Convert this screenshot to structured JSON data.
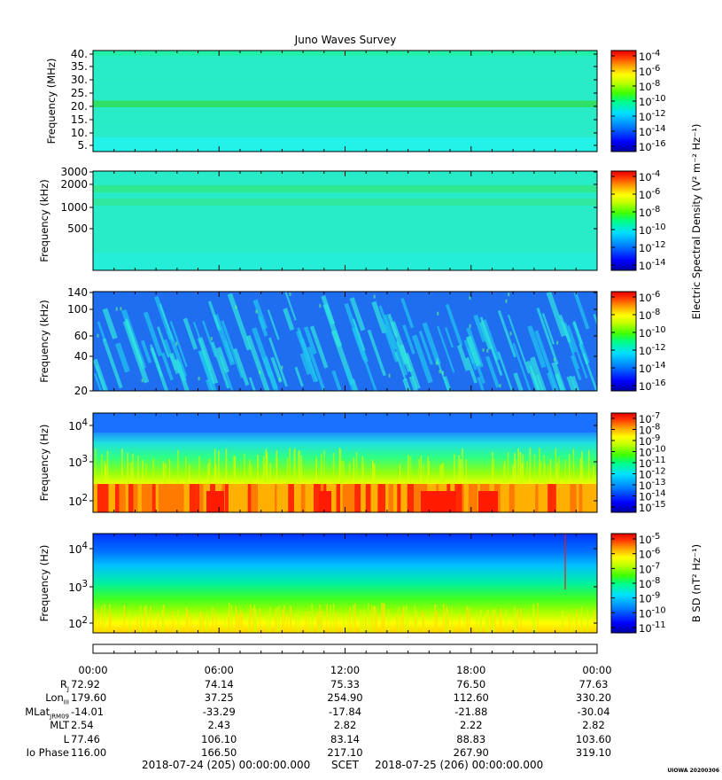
{
  "title": "Juno Waves Survey",
  "colors": {
    "background_hf": "#24ecd0",
    "background_low": "#1f6ef0",
    "colormap": [
      "#0000a0",
      "#0000ff",
      "#0080ff",
      "#00e0ff",
      "#00ff80",
      "#40ff00",
      "#c0ff00",
      "#ffff00",
      "#ffa000",
      "#ff3000",
      "#e00000"
    ]
  },
  "chart_data": [
    {
      "type": "heatmap",
      "ylabel": "Frequency (MHz)",
      "yticks": [
        "40.",
        "35.",
        "30.",
        "25.",
        "20.",
        "15.",
        "10.",
        "5."
      ],
      "colorbar_ticks": [
        {
          "base": "10",
          "exp": "-4"
        },
        {
          "base": "10",
          "exp": "-6"
        },
        {
          "base": "10",
          "exp": "-8"
        },
        {
          "base": "10",
          "exp": "-10"
        },
        {
          "base": "10",
          "exp": "-12"
        },
        {
          "base": "10",
          "exp": "-14"
        },
        {
          "base": "10",
          "exp": "-16"
        }
      ]
    },
    {
      "type": "heatmap",
      "ylabel": "Frequency (kHz)",
      "yticks": [
        "3000",
        "2000",
        "1000",
        "500"
      ],
      "colorbar_ticks": [
        {
          "base": "10",
          "exp": "-4"
        },
        {
          "base": "10",
          "exp": "-6"
        },
        {
          "base": "10",
          "exp": "-8"
        },
        {
          "base": "10",
          "exp": "-10"
        },
        {
          "base": "10",
          "exp": "-12"
        },
        {
          "base": "10",
          "exp": "-14"
        }
      ],
      "colorbar_label": "Electric Spectral Density (V² m⁻² Hz⁻¹)"
    },
    {
      "type": "heatmap",
      "ylabel": "Frequency (kHz)",
      "yticks": [
        "140",
        "100",
        "60",
        "40",
        "20"
      ],
      "colorbar_ticks": [
        {
          "base": "10",
          "exp": "-6"
        },
        {
          "base": "10",
          "exp": "-8"
        },
        {
          "base": "10",
          "exp": "-10"
        },
        {
          "base": "10",
          "exp": "-12"
        },
        {
          "base": "10",
          "exp": "-14"
        },
        {
          "base": "10",
          "exp": "-16"
        }
      ]
    },
    {
      "type": "heatmap",
      "ylabel": "Frequency (Hz)",
      "yticks": [
        {
          "base": "10",
          "exp": "4"
        },
        {
          "base": "10",
          "exp": "3"
        },
        {
          "base": "10",
          "exp": "2"
        }
      ],
      "colorbar_ticks": [
        {
          "base": "10",
          "exp": "-7"
        },
        {
          "base": "10",
          "exp": "-8"
        },
        {
          "base": "10",
          "exp": "-9"
        },
        {
          "base": "10",
          "exp": "-10"
        },
        {
          "base": "10",
          "exp": "-11"
        },
        {
          "base": "10",
          "exp": "-12"
        },
        {
          "base": "10",
          "exp": "-13"
        },
        {
          "base": "10",
          "exp": "-14"
        },
        {
          "base": "10",
          "exp": "-15"
        }
      ]
    },
    {
      "type": "heatmap",
      "ylabel": "Frequency (Hz)",
      "yticks": [
        {
          "base": "10",
          "exp": "4"
        },
        {
          "base": "10",
          "exp": "3"
        },
        {
          "base": "10",
          "exp": "2"
        }
      ],
      "colorbar_ticks": [
        {
          "base": "10",
          "exp": "-5"
        },
        {
          "base": "10",
          "exp": "-6"
        },
        {
          "base": "10",
          "exp": "-7"
        },
        {
          "base": "10",
          "exp": "-8"
        },
        {
          "base": "10",
          "exp": "-9"
        },
        {
          "base": "10",
          "exp": "-10"
        },
        {
          "base": "10",
          "exp": "-11"
        }
      ],
      "colorbar_label": "B SD (nT² Hz⁻¹)"
    }
  ],
  "time_axis": {
    "ticks": [
      "00:00",
      "06:00",
      "12:00",
      "18:00",
      "00:00"
    ]
  },
  "ephemeris": {
    "rows": [
      {
        "label": "R",
        "sub": "J",
        "values": [
          "72.92",
          "74.14",
          "75.33",
          "76.50",
          "77.63"
        ]
      },
      {
        "label": "Lon",
        "sub": "III",
        "values": [
          "179.60",
          "37.25",
          "254.90",
          "112.60",
          "330.20"
        ]
      },
      {
        "label": "MLat",
        "sub": "JRM09",
        "values": [
          "-14.01",
          "-33.29",
          "-17.84",
          "-21.88",
          "-30.04"
        ]
      },
      {
        "label": "MLT",
        "sub": "",
        "values": [
          "2.54",
          "2.43",
          "2.82",
          "2.22",
          "2.82"
        ]
      },
      {
        "label": "L",
        "sub": "",
        "values": [
          "77.46",
          "106.10",
          "83.14",
          "88.83",
          "103.60"
        ]
      },
      {
        "label": "Io Phase",
        "sub": "",
        "values": [
          "116.00",
          "166.50",
          "217.10",
          "267.90",
          "319.10"
        ]
      }
    ]
  },
  "footer": {
    "start": "2018-07-24 (205) 00:00:00.000",
    "scet": "SCET",
    "end": "2018-07-25 (206) 00:00:00.000"
  },
  "stamp": "UIOWA 20200306"
}
